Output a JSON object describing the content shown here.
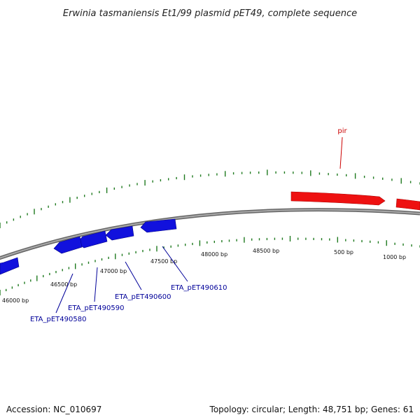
{
  "title": "Erwinia tasmaniensis Et1/99 plasmid pET49, complete sequence",
  "accession": "Accession: NC_010697",
  "summary": "Topology: circular; Length: 48,751 bp; Genes: 61",
  "colors": {
    "backbone": "#888888",
    "ticks": "#1f7a1f",
    "forward_gene": "#ee1111",
    "reverse_gene": "#1111dd",
    "forward_label": "#cc0000",
    "reverse_label": "#000099"
  },
  "tick_labels": [
    "46000 bp",
    "46500 bp",
    "47000 bp",
    "47500 bp",
    "48000 bp",
    "48500 bp",
    "500 bp",
    "1000 bp"
  ],
  "gene_labels": [
    {
      "text": "pir",
      "strand": "forward"
    },
    {
      "text": "ETA_pET490610",
      "strand": "reverse"
    },
    {
      "text": "ETA_pET490600",
      "strand": "reverse"
    },
    {
      "text": "ETA_pET490590",
      "strand": "reverse"
    },
    {
      "text": "ETA_pET490580",
      "strand": "reverse"
    }
  ]
}
